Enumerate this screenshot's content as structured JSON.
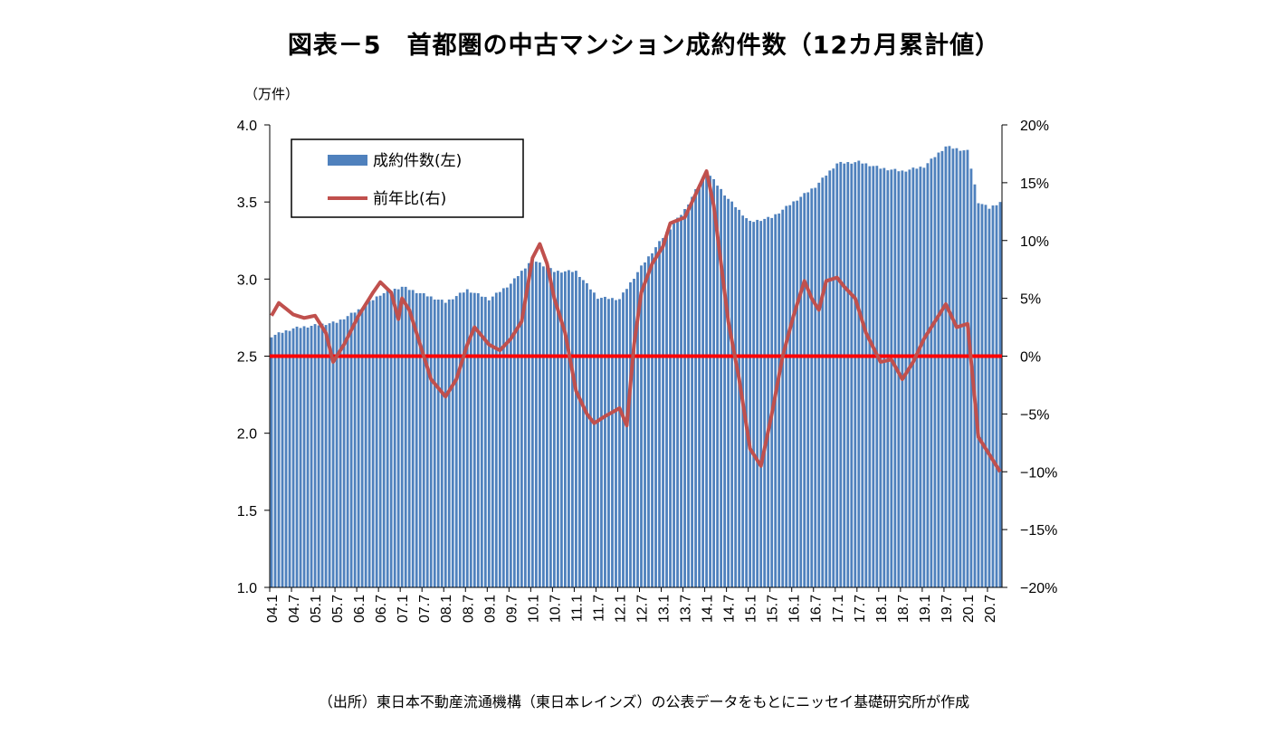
{
  "chart_data": {
    "type": "bar+line",
    "title": "図表－5　首都圏の中古マンション成約件数（12カ月累計値）",
    "left_axis_unit": "（万件）",
    "left_axis": {
      "ylim": [
        1.0,
        4.0
      ],
      "ticks": [
        "1.0",
        "1.5",
        "2.0",
        "2.5",
        "3.0",
        "3.5",
        "4.0"
      ]
    },
    "right_axis": {
      "ylim": [
        -20,
        20
      ],
      "ticks": [
        "-20%",
        "-15%",
        "-10%",
        "-5%",
        "0%",
        "5%",
        "10%",
        "15%",
        "20%"
      ]
    },
    "x_tick_labels": [
      "04.1",
      "04.7",
      "05.1",
      "05.7",
      "06.1",
      "06.7",
      "07.1",
      "07.7",
      "08.1",
      "08.7",
      "09.1",
      "09.7",
      "10.1",
      "10.7",
      "11.1",
      "11.7",
      "12.1",
      "12.7",
      "13.1",
      "13.7",
      "14.1",
      "14.7",
      "15.1",
      "15.7",
      "16.1",
      "16.7",
      "17.1",
      "17.7",
      "18.1",
      "18.7",
      "19.1",
      "19.7",
      "20.1",
      "20.7"
    ],
    "legend": {
      "bars": "成約件数(左)",
      "line": "前年比(右)",
      "position": "top-left"
    },
    "colors": {
      "bars": "#4F81BD",
      "line": "#C0504D",
      "zero_line": "#FF0000"
    },
    "series": [
      {
        "name": "成約件数(左)",
        "axis": "left",
        "type": "bar",
        "keypoints": [
          [
            "04.1",
            2.63
          ],
          [
            "04.7",
            2.68
          ],
          [
            "05.1",
            2.7
          ],
          [
            "05.7",
            2.72
          ],
          [
            "06.1",
            2.8
          ],
          [
            "06.7",
            2.9
          ],
          [
            "07.1",
            2.95
          ],
          [
            "07.7",
            2.9
          ],
          [
            "08.1",
            2.85
          ],
          [
            "08.7",
            2.93
          ],
          [
            "09.1",
            2.87
          ],
          [
            "09.7",
            2.97
          ],
          [
            "10.1",
            3.13
          ],
          [
            "10.7",
            3.05
          ],
          [
            "11.1",
            3.05
          ],
          [
            "11.7",
            2.88
          ],
          [
            "12.1",
            2.87
          ],
          [
            "12.7",
            3.08
          ],
          [
            "13.1",
            3.27
          ],
          [
            "13.7",
            3.45
          ],
          [
            "14.1",
            3.7
          ],
          [
            "14.7",
            3.52
          ],
          [
            "15.1",
            3.37
          ],
          [
            "15.7",
            3.4
          ],
          [
            "16.1",
            3.5
          ],
          [
            "16.7",
            3.6
          ],
          [
            "17.1",
            3.75
          ],
          [
            "17.7",
            3.76
          ],
          [
            "18.1",
            3.72
          ],
          [
            "18.7",
            3.7
          ],
          [
            "19.1",
            3.73
          ],
          [
            "19.7",
            3.86
          ],
          [
            "20.1",
            3.83
          ],
          [
            "20.4",
            3.5
          ],
          [
            "20.7",
            3.46
          ],
          [
            "20.10",
            3.5
          ]
        ]
      },
      {
        "name": "前年比(右)",
        "axis": "right",
        "type": "line",
        "keypoints": [
          [
            "04.1",
            3.5
          ],
          [
            "04.3",
            4.6
          ],
          [
            "04.7",
            3.6
          ],
          [
            "04.10",
            3.3
          ],
          [
            "05.1",
            3.5
          ],
          [
            "05.4",
            2.0
          ],
          [
            "05.6",
            -0.5
          ],
          [
            "05.9",
            1.0
          ],
          [
            "06.1",
            3.5
          ],
          [
            "06.5",
            5.5
          ],
          [
            "06.7",
            6.4
          ],
          [
            "06.10",
            5.5
          ],
          [
            "06.12",
            3.2
          ],
          [
            "07.1",
            5.0
          ],
          [
            "07.3",
            4.0
          ],
          [
            "07.6",
            1.0
          ],
          [
            "07.9",
            -2.0
          ],
          [
            "08.1",
            -3.5
          ],
          [
            "08.4",
            -2.0
          ],
          [
            "08.7",
            1.0
          ],
          [
            "08.9",
            2.5
          ],
          [
            "09.1",
            1.0
          ],
          [
            "09.4",
            0.5
          ],
          [
            "09.7",
            1.5
          ],
          [
            "09.10",
            3.0
          ],
          [
            "10.1",
            8.5
          ],
          [
            "10.3",
            9.7
          ],
          [
            "10.5",
            8.0
          ],
          [
            "10.7",
            5.0
          ],
          [
            "10.10",
            2.0
          ],
          [
            "11.1",
            -3.0
          ],
          [
            "11.4",
            -5.0
          ],
          [
            "11.6",
            -5.8
          ],
          [
            "11.9",
            -5.2
          ],
          [
            "12.1",
            -4.5
          ],
          [
            "12.3",
            -6.0
          ],
          [
            "12.5",
            1.0
          ],
          [
            "12.7",
            5.5
          ],
          [
            "12.10",
            8.0
          ],
          [
            "13.1",
            9.5
          ],
          [
            "13.3",
            11.5
          ],
          [
            "13.7",
            12.0
          ],
          [
            "13.10",
            14.0
          ],
          [
            "14.1",
            16.0
          ],
          [
            "14.3",
            13.0
          ],
          [
            "14.5",
            8.0
          ],
          [
            "14.7",
            3.0
          ],
          [
            "14.10",
            -2.0
          ],
          [
            "15.1",
            -8.0
          ],
          [
            "15.4",
            -9.5
          ],
          [
            "15.7",
            -5.0
          ],
          [
            "15.10",
            0.0
          ],
          [
            "16.1",
            3.5
          ],
          [
            "16.4",
            6.5
          ],
          [
            "16.6",
            5.0
          ],
          [
            "16.8",
            4.0
          ],
          [
            "16.10",
            6.5
          ],
          [
            "17.1",
            6.8
          ],
          [
            "17.3",
            6.0
          ],
          [
            "17.6",
            5.0
          ],
          [
            "17.9",
            2.0
          ],
          [
            "18.1",
            -0.5
          ],
          [
            "18.4",
            -0.3
          ],
          [
            "18.7",
            -2.0
          ],
          [
            "18.10",
            -0.5
          ],
          [
            "19.1",
            1.5
          ],
          [
            "19.4",
            3.0
          ],
          [
            "19.7",
            4.5
          ],
          [
            "19.10",
            2.5
          ],
          [
            "20.1",
            2.8
          ],
          [
            "20.4",
            -7.0
          ],
          [
            "20.7",
            -8.5
          ],
          [
            "20.10",
            -10.0
          ]
        ]
      },
      {
        "name": "zero-line",
        "axis": "right",
        "type": "line",
        "values": [
          0
        ]
      }
    ]
  },
  "source": "（出所）東日本不動産流通機構（東日本レインズ）の公表データをもとにニッセイ基礎研究所が作成"
}
